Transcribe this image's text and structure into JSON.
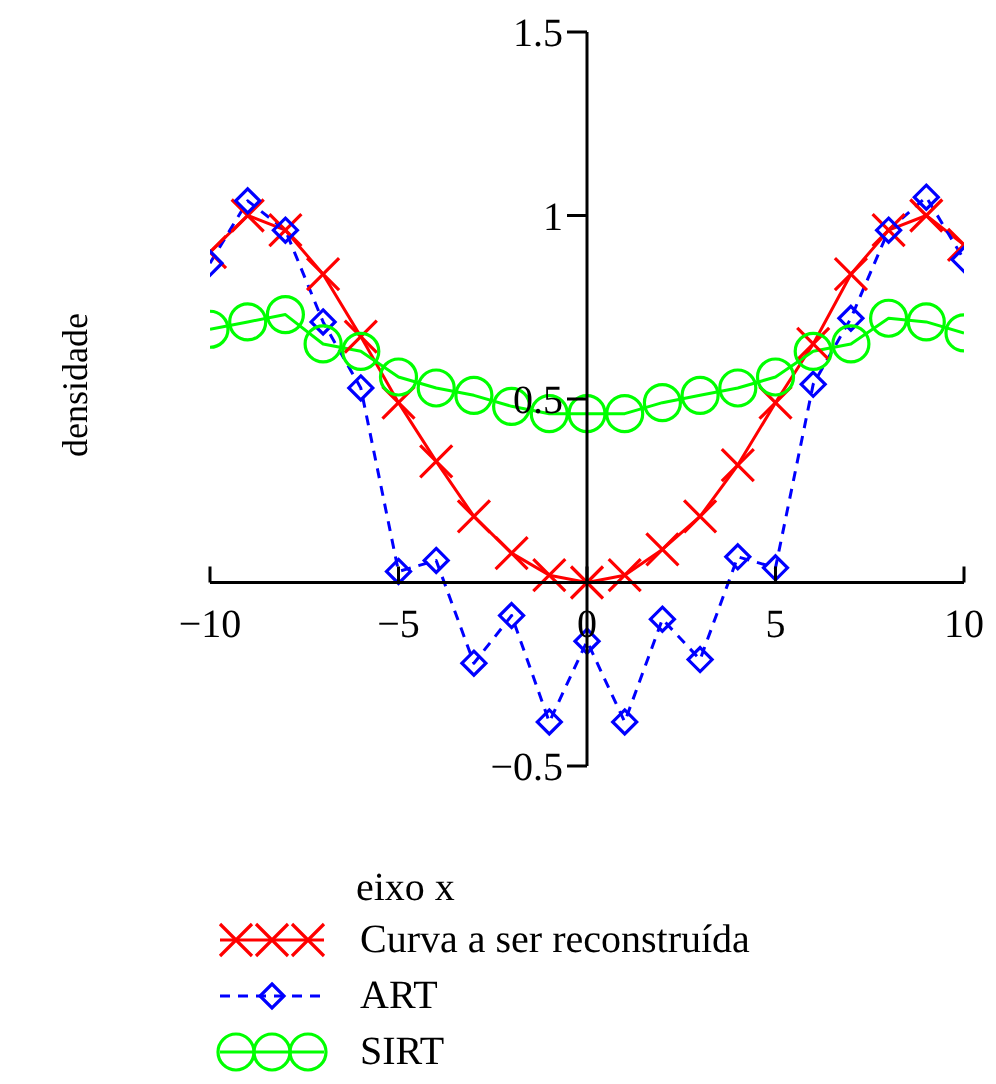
{
  "chart_data": {
    "type": "line",
    "xlabel": "eixo x",
    "ylabel": "densidade",
    "x": [
      -10,
      -9,
      -8,
      -7,
      -6,
      -5,
      -4,
      -3,
      -2,
      -1,
      0,
      1,
      2,
      3,
      4,
      5,
      6,
      7,
      8,
      9,
      10
    ],
    "series": [
      {
        "name": "Curva a ser reconstruída",
        "color": "#ff0000",
        "marker": "cross",
        "line_style": "solid",
        "values": [
          0.9,
          1.0,
          0.96,
          0.84,
          0.67,
          0.49,
          0.33,
          0.18,
          0.08,
          0.02,
          0,
          0.02,
          0.09,
          0.18,
          0.32,
          0.49,
          0.65,
          0.84,
          0.96,
          1.0,
          0.92
        ]
      },
      {
        "name": "ART",
        "color": "#0000ff",
        "marker": "diamond",
        "line_style": "dashed",
        "values": [
          0.87,
          1.04,
          0.96,
          0.71,
          0.53,
          0.03,
          0.06,
          -0.22,
          -0.09,
          -0.38,
          -0.16,
          -0.38,
          -0.1,
          -0.21,
          0.07,
          0.04,
          0.54,
          0.72,
          0.96,
          1.05,
          0.88
        ]
      },
      {
        "name": "SIRT",
        "color": "#00ff00",
        "marker": "circle",
        "line_style": "solid",
        "values": [
          0.69,
          0.71,
          0.73,
          0.65,
          0.63,
          0.56,
          0.53,
          0.51,
          0.48,
          0.46,
          0.46,
          0.46,
          0.49,
          0.51,
          0.53,
          0.56,
          0.63,
          0.65,
          0.72,
          0.71,
          0.68
        ]
      }
    ],
    "xlim": [
      -10,
      10
    ],
    "xticks": [
      {
        "value": -10,
        "label": "−10"
      },
      {
        "value": -5,
        "label": "−5"
      },
      0,
      5,
      10
    ],
    "ylim": [
      -0.5,
      1.5
    ],
    "yticks": [
      {
        "value": -0.5,
        "label": "−0.5"
      },
      0.5,
      1,
      1.5
    ],
    "grid": false,
    "legend": "bottom"
  }
}
